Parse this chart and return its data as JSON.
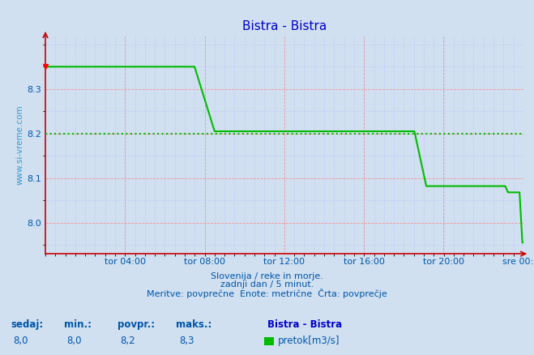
{
  "title": "Bistra - Bistra",
  "title_color": "#0000cc",
  "bg_color": "#d0e0f0",
  "plot_bg_color": "#d0e0f0",
  "line_color": "#00bb00",
  "line_width": 1.5,
  "avg_line_value": 8.2,
  "avg_line_color": "#00bb00",
  "ylim_min": 7.93,
  "ylim_max": 8.42,
  "yticks": [
    8.0,
    8.1,
    8.2,
    8.3
  ],
  "xlabel_color": "#0055aa",
  "grid_major_color": "#ff8888",
  "grid_minor_color": "#aaaaff",
  "axis_color": "#cc0000",
  "footnote_line1": "Slovenija / reke in morje.",
  "footnote_line2": "zadnji dan / 5 minut.",
  "footnote_line3": "Meritve: povprečne  Enote: metrične  Črta: povprečje",
  "footnote_color": "#0055aa",
  "legend_label": "Bistra - Bistra",
  "legend_series": "pretok[m3/s]",
  "legend_color": "#00bb00",
  "stat_sedaj": "8,0",
  "stat_min": "8,0",
  "stat_povpr": "8,2",
  "stat_maks": "8,3",
  "ylabel_text": "www.si-vreme.com",
  "ylabel_color": "#3399cc",
  "x_labels": [
    "tor 04:00",
    "tor 08:00",
    "tor 12:00",
    "tor 16:00",
    "tor 20:00",
    "sre 00:00"
  ],
  "x_tick_positions": [
    0.1667,
    0.3333,
    0.5,
    0.6667,
    0.8333,
    1.0
  ],
  "x_vals": [
    0.0,
    0.312,
    0.3121,
    0.354,
    0.3541,
    0.772,
    0.7721,
    0.797,
    0.7971,
    0.962,
    0.9621,
    0.968,
    0.9681,
    0.992,
    0.9921,
    0.998,
    0.9981,
    1.0
  ],
  "y_vals": [
    8.35,
    8.35,
    8.35,
    8.205,
    8.205,
    8.205,
    8.205,
    8.082,
    8.082,
    8.082,
    8.082,
    8.068,
    8.068,
    8.068,
    8.068,
    7.955,
    7.955,
    7.955
  ]
}
